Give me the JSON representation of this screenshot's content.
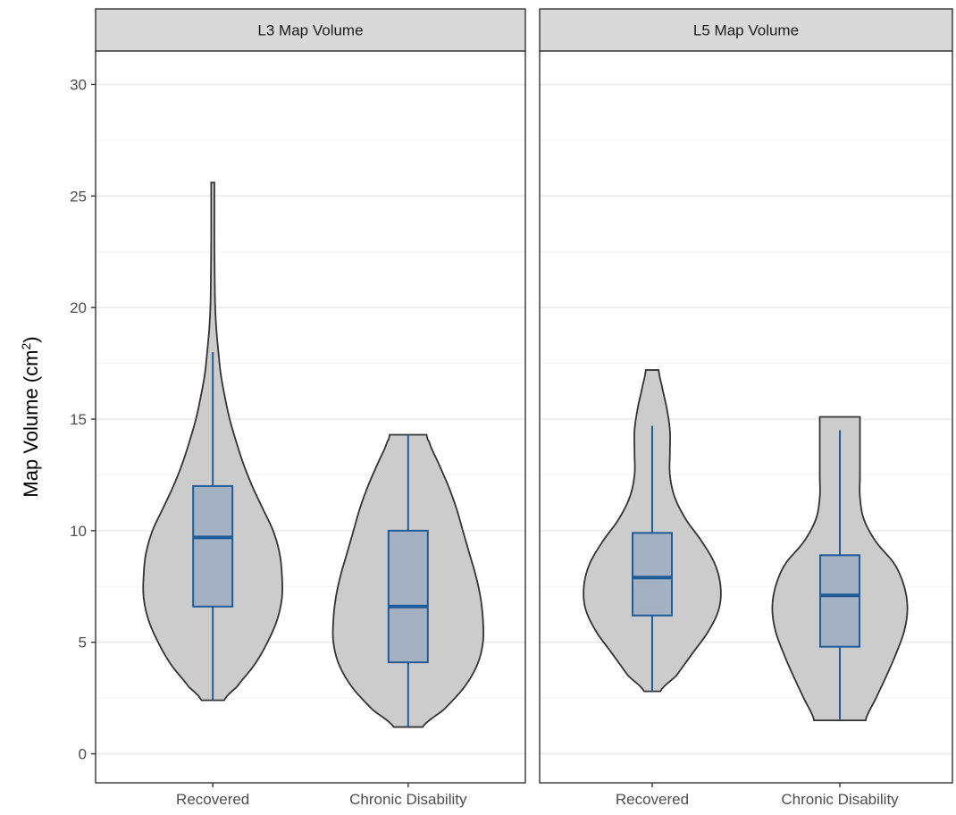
{
  "chart_data": {
    "type": "violin",
    "ylabel": "Map Volume (cm",
    "ylabel_superscript": "2",
    "ylabel_suffix": ")",
    "ylim": [
      -1.3,
      31.5
    ],
    "yticks": [
      0,
      5,
      10,
      15,
      20,
      25,
      30
    ],
    "categories": [
      "Recovered",
      "Chronic Disability"
    ],
    "grid": true,
    "colors": {
      "violin_fill": "#cccccc",
      "violin_stroke": "#333333",
      "box_fill": "#a3b1c2",
      "box_stroke": "#1f5c99",
      "median": "#1f5c99"
    },
    "panels": [
      {
        "title": "L3 Map Volume",
        "groups": [
          {
            "name": "Recovered",
            "box": {
              "min": 2.4,
              "q1": 6.6,
              "median": 9.7,
              "q3": 12.0,
              "max": 18.0
            },
            "violin_range": [
              2.4,
              25.6
            ],
            "density": [
              [
                2.4,
                0.14
              ],
              [
                3.0,
                0.3
              ],
              [
                4.0,
                0.52
              ],
              [
                5.0,
                0.68
              ],
              [
                6.0,
                0.8
              ],
              [
                7.0,
                0.86
              ],
              [
                8.0,
                0.86
              ],
              [
                9.0,
                0.83
              ],
              [
                10.0,
                0.75
              ],
              [
                11.0,
                0.62
              ],
              [
                12.0,
                0.49
              ],
              [
                13.0,
                0.38
              ],
              [
                14.0,
                0.29
              ],
              [
                15.0,
                0.21
              ],
              [
                16.0,
                0.15
              ],
              [
                17.0,
                0.1
              ],
              [
                18.0,
                0.07
              ],
              [
                19.0,
                0.045
              ],
              [
                20.0,
                0.03
              ],
              [
                21.0,
                0.025
              ],
              [
                22.0,
                0.022
              ],
              [
                23.0,
                0.02
              ],
              [
                24.0,
                0.02
              ],
              [
                25.6,
                0.02
              ]
            ]
          },
          {
            "name": "Chronic Disability",
            "box": {
              "min": 1.2,
              "q1": 4.1,
              "median": 6.6,
              "q3": 10.0,
              "max": 14.3
            },
            "violin_range": [
              1.2,
              14.3
            ],
            "density": [
              [
                1.2,
                0.18
              ],
              [
                2.0,
                0.45
              ],
              [
                3.0,
                0.7
              ],
              [
                4.0,
                0.86
              ],
              [
                5.0,
                0.93
              ],
              [
                6.0,
                0.93
              ],
              [
                7.0,
                0.9
              ],
              [
                8.0,
                0.84
              ],
              [
                9.0,
                0.76
              ],
              [
                10.0,
                0.68
              ],
              [
                11.0,
                0.6
              ],
              [
                12.0,
                0.5
              ],
              [
                13.0,
                0.38
              ],
              [
                14.0,
                0.26
              ],
              [
                14.3,
                0.23
              ]
            ]
          }
        ]
      },
      {
        "title": "L5 Map Volume",
        "groups": [
          {
            "name": "Recovered",
            "box": {
              "min": 2.8,
              "q1": 6.2,
              "median": 7.9,
              "q3": 9.9,
              "max": 14.7
            },
            "violin_range": [
              2.8,
              17.2
            ],
            "density": [
              [
                2.8,
                0.1
              ],
              [
                3.5,
                0.3
              ],
              [
                4.5,
                0.5
              ],
              [
                5.5,
                0.7
              ],
              [
                6.5,
                0.83
              ],
              [
                7.5,
                0.85
              ],
              [
                8.5,
                0.78
              ],
              [
                9.5,
                0.62
              ],
              [
                10.5,
                0.42
              ],
              [
                11.5,
                0.28
              ],
              [
                12.5,
                0.22
              ],
              [
                13.5,
                0.22
              ],
              [
                14.5,
                0.22
              ],
              [
                15.5,
                0.18
              ],
              [
                16.5,
                0.12
              ],
              [
                17.2,
                0.08
              ]
            ]
          },
          {
            "name": "Chronic Disability",
            "box": {
              "min": 1.5,
              "q1": 4.8,
              "median": 7.1,
              "q3": 8.9,
              "max": 14.5
            },
            "violin_range": [
              1.5,
              15.1
            ],
            "density": [
              [
                1.5,
                0.32
              ],
              [
                2.5,
                0.45
              ],
              [
                3.5,
                0.58
              ],
              [
                4.5,
                0.7
              ],
              [
                5.5,
                0.8
              ],
              [
                6.5,
                0.84
              ],
              [
                7.5,
                0.8
              ],
              [
                8.5,
                0.68
              ],
              [
                9.5,
                0.45
              ],
              [
                10.5,
                0.3
              ],
              [
                11.5,
                0.25
              ],
              [
                12.5,
                0.25
              ],
              [
                13.5,
                0.25
              ],
              [
                14.5,
                0.25
              ],
              [
                15.1,
                0.25
              ]
            ]
          }
        ]
      }
    ]
  }
}
